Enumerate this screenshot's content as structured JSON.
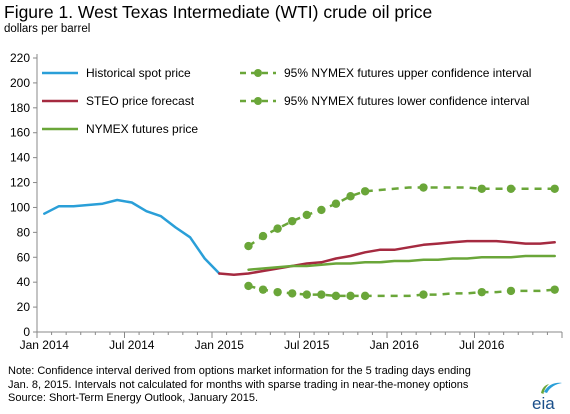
{
  "title": "Figure 1. West Texas Intermediate (WTI) crude oil price",
  "unit": "dollars per barrel",
  "notes": [
    "Note: Confidence interval derived from options market information for the 5 trading days ending",
    "Jan. 8, 2015. Intervals not calculated for months with sparse trading in near-the-money options",
    "Source:  Short-Term  Energy Outlook, January  2015."
  ],
  "logo_text": "eia",
  "colors": {
    "historical": "#2a9fd8",
    "steo": "#a52a40",
    "nymex": "#6aa639",
    "ci": "#6aa639"
  },
  "chart_data": {
    "type": "line",
    "ylim": [
      0,
      220
    ],
    "yticks": [
      0,
      20,
      40,
      60,
      80,
      100,
      120,
      140,
      160,
      180,
      200,
      220
    ],
    "xtick_labels": [
      "Jan 2014",
      "Jul 2014",
      "Jan 2015",
      "Jul 2015",
      "Jan 2016",
      "Jul 2016"
    ],
    "x_months_start": "Jan 2014",
    "series": [
      {
        "name": "Historical spot price",
        "key": "historical",
        "x": [
          0,
          1,
          2,
          3,
          4,
          5,
          6,
          7,
          8,
          9,
          10,
          11,
          12
        ],
        "values": [
          95,
          101,
          101,
          102,
          103,
          106,
          104,
          97,
          93,
          84,
          76,
          59,
          47
        ]
      },
      {
        "name": "STEO price forecast",
        "key": "steo",
        "x": [
          12,
          13,
          14,
          15,
          16,
          17,
          18,
          19,
          20,
          21,
          22,
          23,
          24,
          25,
          26,
          27,
          28,
          29,
          30,
          31,
          32,
          33,
          34,
          35
        ],
        "values": [
          47,
          46,
          47,
          49,
          51,
          53,
          55,
          56,
          59,
          61,
          64,
          66,
          66,
          68,
          70,
          71,
          72,
          73,
          73,
          73,
          72,
          71,
          71,
          72
        ]
      },
      {
        "name": "NYMEX futures price",
        "key": "nymex",
        "x": [
          14,
          15,
          16,
          17,
          18,
          19,
          20,
          21,
          22,
          23,
          24,
          25,
          26,
          27,
          28,
          29,
          30,
          31,
          32,
          33,
          34,
          35
        ],
        "values": [
          50,
          51,
          52,
          53,
          53,
          54,
          55,
          55,
          56,
          56,
          57,
          57,
          58,
          58,
          59,
          59,
          60,
          60,
          60,
          61,
          61,
          61
        ]
      },
      {
        "name": "95% NYMEX futures upper confidence interval",
        "key": "ci",
        "dashed": true,
        "x": [
          14,
          15,
          16,
          17,
          18,
          19,
          20,
          21,
          22,
          23,
          24,
          25,
          26,
          27,
          28,
          29,
          30,
          31,
          32,
          33,
          34,
          35
        ],
        "values": [
          69,
          77,
          83,
          89,
          94,
          98,
          103,
          109,
          113,
          114,
          115,
          116,
          116,
          116,
          116,
          116,
          115,
          115,
          115,
          115,
          115,
          115
        ],
        "markers_x": [
          14,
          15,
          16,
          17,
          18,
          19,
          20,
          21,
          22,
          26,
          30,
          32,
          35
        ]
      },
      {
        "name": "95% NYMEX futures lower confidence interval",
        "key": "ci",
        "dashed": true,
        "x": [
          14,
          15,
          16,
          17,
          18,
          19,
          20,
          21,
          22,
          23,
          24,
          25,
          26,
          27,
          28,
          29,
          30,
          31,
          32,
          33,
          34,
          35
        ],
        "values": [
          37,
          34,
          32,
          31,
          30,
          30,
          29,
          29,
          29,
          29,
          29,
          29,
          30,
          30,
          31,
          31,
          32,
          32,
          33,
          33,
          33,
          34
        ],
        "markers_x": [
          14,
          15,
          16,
          17,
          18,
          19,
          20,
          21,
          22,
          26,
          30,
          32,
          35
        ]
      }
    ],
    "legend": {
      "left": [
        "Historical spot price",
        "STEO price forecast",
        "NYMEX futures price"
      ],
      "right": [
        "95% NYMEX futures upper confidence interval",
        "95% NYMEX futures lower confidence interval"
      ]
    }
  }
}
